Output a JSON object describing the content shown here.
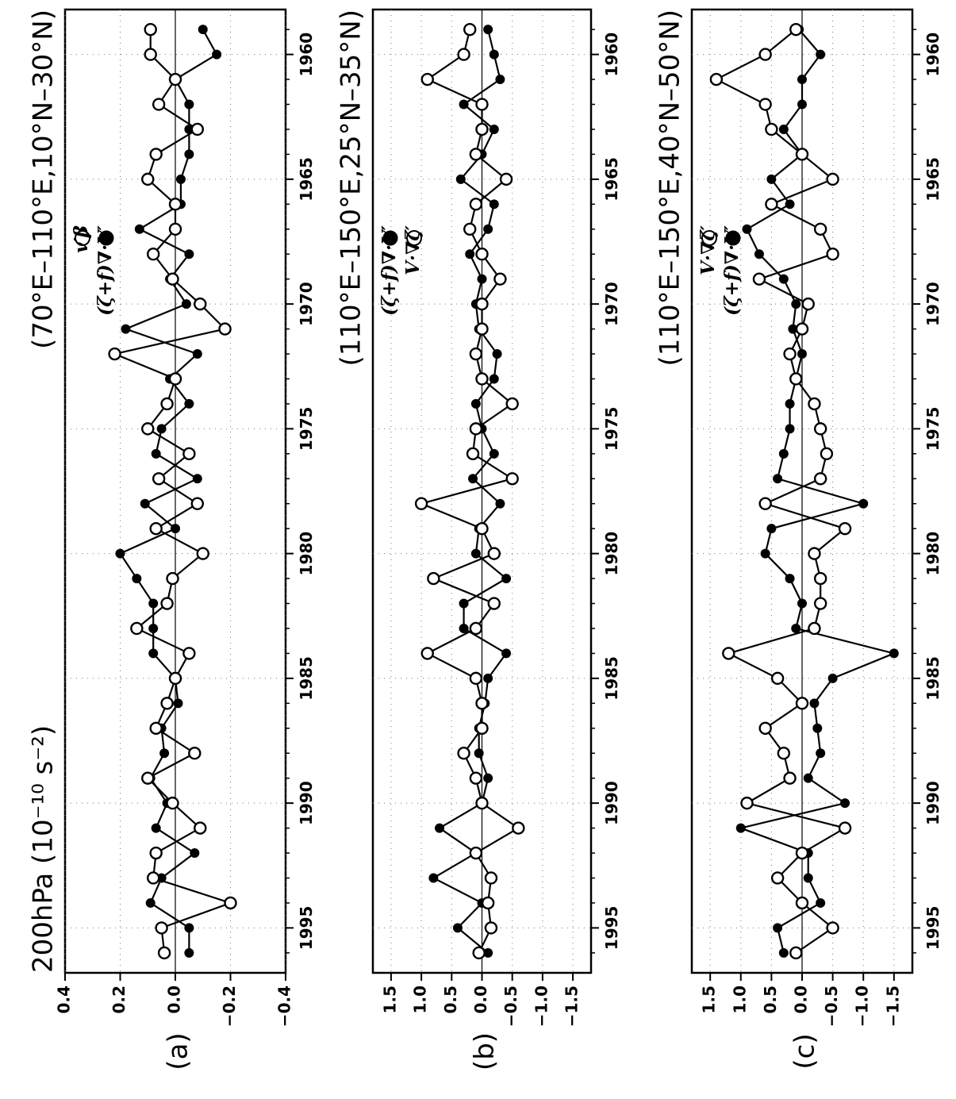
{
  "figure": {
    "panels_rotated": true,
    "years_axis": {
      "min": 1958.2,
      "max": 1996.8,
      "ticks": [
        1960,
        1965,
        1970,
        1975,
        1980,
        1985,
        1990,
        1995
      ]
    },
    "grid": "dotted",
    "zero_line": true
  },
  "chart_data": [
    {
      "type": "line",
      "panel": "(a)",
      "title": "(70°E–110°E,10°N–30°N)",
      "subtitle": "200hPa (10⁻¹⁰ s⁻²)",
      "ylim": [
        -0.4,
        0.4
      ],
      "yticks": [
        "0.4",
        "0.2",
        "0.0",
        "−0.2",
        "−0.4"
      ],
      "x": [
        1959,
        1960,
        1961,
        1962,
        1963,
        1964,
        1965,
        1966,
        1967,
        1968,
        1969,
        1970,
        1971,
        1972,
        1973,
        1974,
        1975,
        1976,
        1977,
        1978,
        1979,
        1980,
        1981,
        1982,
        1983,
        1984,
        1985,
        1986,
        1987,
        1988,
        1989,
        1990,
        1991,
        1992,
        1993,
        1994,
        1995,
        1996
      ],
      "series": [
        {
          "name": "(ζ+f)∇·V′",
          "marker": "filled",
          "values": [
            -0.1,
            -0.15,
            0.0,
            -0.05,
            -0.05,
            -0.05,
            -0.02,
            -0.02,
            0.13,
            -0.05,
            0.02,
            -0.04,
            0.18,
            -0.08,
            0.02,
            -0.05,
            0.05,
            0.07,
            -0.08,
            0.11,
            0.0,
            0.2,
            0.14,
            0.08,
            0.08,
            0.08,
            0.0,
            -0.01,
            0.05,
            0.04,
            0.09,
            0.03,
            0.07,
            -0.07,
            0.05,
            0.09,
            -0.05,
            -0.05
          ]
        },
        {
          "name": "v′β",
          "marker": "open",
          "values": [
            0.09,
            0.09,
            0.0,
            0.06,
            -0.08,
            0.07,
            0.1,
            0.0,
            0.0,
            0.08,
            0.01,
            -0.09,
            -0.18,
            0.22,
            0.0,
            0.03,
            0.1,
            -0.05,
            0.06,
            -0.08,
            0.07,
            -0.1,
            0.01,
            0.03,
            0.14,
            -0.05,
            0.0,
            0.03,
            0.07,
            -0.07,
            0.1,
            0.01,
            -0.09,
            0.07,
            0.08,
            -0.2,
            0.05,
            0.04
          ]
        }
      ]
    },
    {
      "type": "line",
      "panel": "(b)",
      "title": "(110°E–150°E,25°N–35°N)",
      "ylim": [
        -1.8,
        1.8
      ],
      "yticks": [
        "1.5",
        "1.0",
        "0.5",
        "0.0",
        "−0.5",
        "−1.0",
        "−1.5"
      ],
      "x": [
        1959,
        1960,
        1961,
        1962,
        1963,
        1964,
        1965,
        1966,
        1967,
        1968,
        1969,
        1970,
        1971,
        1972,
        1973,
        1974,
        1975,
        1976,
        1977,
        1978,
        1979,
        1980,
        1981,
        1982,
        1983,
        1984,
        1985,
        1986,
        1987,
        1988,
        1989,
        1990,
        1991,
        1992,
        1993,
        1994,
        1995,
        1996
      ],
      "series": [
        {
          "name": "(ζ+f)∇·V′",
          "marker": "filled",
          "values": [
            -0.1,
            -0.2,
            -0.3,
            0.3,
            -0.2,
            0.0,
            0.35,
            -0.2,
            -0.1,
            0.2,
            0.0,
            0.1,
            0.05,
            -0.25,
            -0.2,
            0.1,
            0.0,
            -0.2,
            0.15,
            -0.3,
            0.05,
            0.1,
            -0.4,
            0.3,
            0.3,
            -0.4,
            -0.1,
            -0.05,
            0.05,
            0.05,
            -0.1,
            0.0,
            0.7,
            0.1,
            0.8,
            0.0,
            0.4,
            -0.1
          ]
        },
        {
          "name": "V·∇ζ′",
          "marker": "open",
          "values": [
            0.2,
            0.3,
            0.9,
            0.0,
            0.0,
            0.1,
            -0.4,
            0.1,
            0.2,
            0.0,
            -0.3,
            0.0,
            0.0,
            0.1,
            0.0,
            -0.5,
            0.1,
            0.15,
            -0.5,
            1.0,
            0.0,
            -0.2,
            0.8,
            -0.2,
            0.1,
            0.9,
            0.1,
            0.0,
            0.0,
            0.3,
            0.1,
            0.0,
            -0.6,
            0.1,
            -0.15,
            -0.1,
            -0.15,
            0.05
          ]
        }
      ]
    },
    {
      "type": "line",
      "panel": "(c)",
      "title": "(110°E–150°E,40°N–50°N)",
      "ylim": [
        -1.8,
        1.8
      ],
      "yticks": [
        "1.5",
        "1.0",
        "0.5",
        "0.0",
        "−0.5",
        "−1.0",
        "−1.5"
      ],
      "x": [
        1959,
        1960,
        1961,
        1962,
        1963,
        1964,
        1965,
        1966,
        1967,
        1968,
        1969,
        1970,
        1971,
        1972,
        1973,
        1974,
        1975,
        1976,
        1977,
        1978,
        1979,
        1980,
        1981,
        1982,
        1983,
        1984,
        1985,
        1986,
        1987,
        1988,
        1989,
        1990,
        1991,
        1992,
        1993,
        1994,
        1995,
        1996
      ],
      "series": [
        {
          "name": "(ζ+f)∇·V′",
          "marker": "filled",
          "values": [
            0.05,
            -0.3,
            0.0,
            0.0,
            0.3,
            0.0,
            0.5,
            0.2,
            0.9,
            0.7,
            0.3,
            0.1,
            0.15,
            0.0,
            0.1,
            0.2,
            0.2,
            0.3,
            0.4,
            -1.0,
            0.5,
            0.6,
            0.2,
            0.0,
            0.1,
            -1.5,
            -0.5,
            -0.2,
            -0.25,
            -0.3,
            -0.1,
            -0.7,
            1.0,
            -0.1,
            -0.1,
            -0.3,
            0.4,
            0.3
          ]
        },
        {
          "name": "V·∇ζ′",
          "marker": "open",
          "values": [
            0.1,
            0.6,
            1.4,
            0.6,
            0.5,
            0.0,
            -0.5,
            0.5,
            -0.3,
            -0.5,
            0.7,
            -0.1,
            0.0,
            0.2,
            0.1,
            -0.2,
            -0.3,
            -0.4,
            -0.3,
            0.6,
            -0.7,
            -0.2,
            -0.3,
            -0.3,
            -0.2,
            1.2,
            0.4,
            0.0,
            0.6,
            0.3,
            0.2,
            0.9,
            -0.7,
            0.0,
            0.4,
            0.0,
            -0.5,
            0.1
          ]
        }
      ]
    }
  ]
}
